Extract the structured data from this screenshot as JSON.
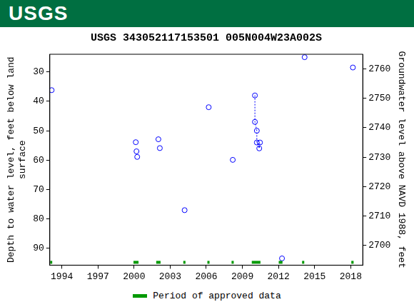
{
  "header": {
    "logo": "USGS"
  },
  "chart_data": {
    "type": "scatter",
    "title": "USGS 343052117153501 005N004W23A002S",
    "y_label": [
      "Depth to water level, feet below land",
      "surface"
    ],
    "y2_label": "Groundwater level above NAVD 1988, feet",
    "xlim": [
      1993.0,
      2019.0
    ],
    "xticks": [
      1994,
      1997,
      2000,
      2003,
      2006,
      2009,
      2012,
      2015,
      2018
    ],
    "ylim": [
      95.7,
      24
    ],
    "yticks": [
      30,
      40,
      50,
      60,
      70,
      80,
      90
    ],
    "y2lim": [
      2693.3,
      2765
    ],
    "y2ticks": [
      2700,
      2710,
      2720,
      2730,
      2740,
      2750,
      2760
    ],
    "grid": false,
    "series": [
      {
        "type": "scatter",
        "marker": "circle",
        "color": "#0000ff",
        "x": [
          1993.15,
          2000.14,
          2000.2,
          2000.26,
          2002.02,
          2002.14,
          2004.2,
          2006.2,
          2008.2,
          2012.29,
          2014.17,
          2018.18
        ],
        "values": [
          36.2,
          53.9,
          57,
          58.9,
          52.9,
          55.9,
          77,
          42,
          59.9,
          93.4,
          25,
          28.5
        ]
      },
      {
        "type": "line",
        "line_style": "dotted",
        "marker": "circle",
        "color": "#0000ff",
        "x": [
          2010.04,
          2010.04,
          2010.2,
          2010.2,
          2010.4,
          2010.46
        ],
        "values": [
          38,
          47,
          50,
          54,
          56,
          54
        ]
      },
      {
        "type": "period",
        "name": "Period of approved data",
        "color": "#009900",
        "periods": [
          [
            1993.03,
            1993.2
          ],
          [
            1999.95,
            2000.37
          ],
          [
            2001.84,
            2002.2
          ],
          [
            2004.09,
            2004.27
          ],
          [
            2006.09,
            2006.27
          ],
          [
            2008.1,
            2008.28
          ],
          [
            2009.78,
            2010.5
          ],
          [
            2012.02,
            2012.33
          ],
          [
            2013.96,
            2014.14
          ],
          [
            2018.05,
            2018.24
          ]
        ]
      }
    ]
  }
}
